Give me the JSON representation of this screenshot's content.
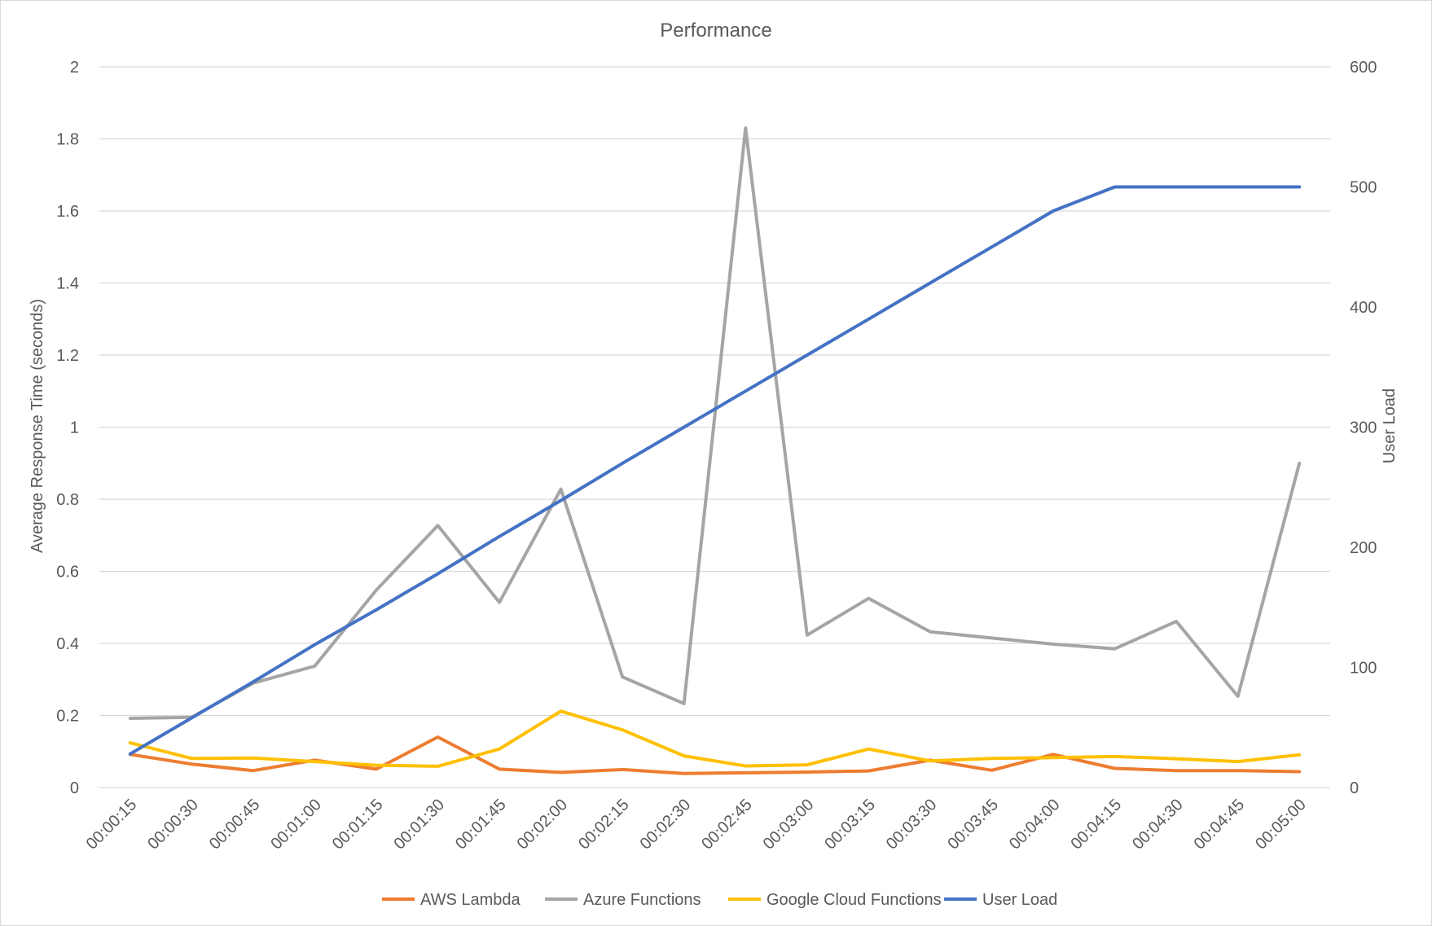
{
  "chart_data": {
    "type": "line",
    "title": "Performance",
    "ylabel": "Average Response Time (seconds)",
    "y2label": "User Load",
    "ylim": [
      0,
      2
    ],
    "y_ticks": [
      "0",
      "0.2",
      "0.4",
      "0.6",
      "0.8",
      "1",
      "1.2",
      "1.4",
      "1.6",
      "1.8",
      "2"
    ],
    "y2lim": [
      0,
      600
    ],
    "y2_ticks": [
      "0",
      "100",
      "200",
      "300",
      "400",
      "500",
      "600"
    ],
    "categories": [
      "00:00:15",
      "00:00:30",
      "00:00:45",
      "00:01:00",
      "00:01:15",
      "00:01:30",
      "00:01:45",
      "00:02:00",
      "00:02:15",
      "00:02:30",
      "00:02:45",
      "00:03:00",
      "00:03:15",
      "00:03:30",
      "00:03:45",
      "00:04:00",
      "00:04:15",
      "00:04:30",
      "00:04:45",
      "00:05:00"
    ],
    "grid": true,
    "legend_position": "bottom",
    "series": [
      {
        "name": "AWS Lambda",
        "axis": "left",
        "color": "#ED7D31",
        "values": [
          0.092,
          0.065,
          0.047,
          0.076,
          0.051,
          0.14,
          0.051,
          0.042,
          0.05,
          0.039,
          0.041,
          0.043,
          0.046,
          0.076,
          0.048,
          0.092,
          0.053,
          0.047,
          0.047,
          0.044
        ]
      },
      {
        "name": "Azure Functions",
        "axis": "left",
        "color": "#A5A5A5",
        "values": [
          0.192,
          0.195,
          0.29,
          0.337,
          0.548,
          0.727,
          0.514,
          0.828,
          0.307,
          0.233,
          1.83,
          0.423,
          0.525,
          0.432,
          0.415,
          0.398,
          0.385,
          0.461,
          0.253,
          0.9
        ]
      },
      {
        "name": "Google Cloud Functions",
        "axis": "left",
        "color": "#FFC000",
        "values": [
          0.124,
          0.081,
          0.082,
          0.072,
          0.062,
          0.059,
          0.107,
          0.212,
          0.16,
          0.088,
          0.06,
          0.063,
          0.107,
          0.074,
          0.081,
          0.083,
          0.086,
          0.08,
          0.072,
          0.091
        ]
      },
      {
        "name": "User Load",
        "axis": "right",
        "color": "#4472C4",
        "values": [
          28,
          58,
          88,
          119,
          148,
          178,
          209,
          239,
          270,
          300,
          330,
          360,
          390,
          420,
          450,
          480,
          500,
          500,
          500,
          500
        ]
      }
    ]
  }
}
